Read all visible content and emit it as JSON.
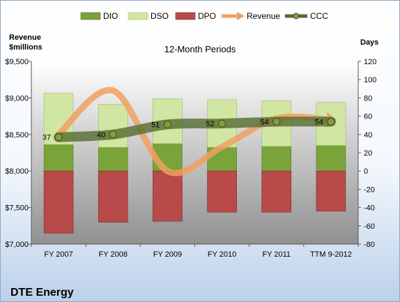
{
  "chart_data": {
    "type": "bar",
    "title": "12-Month Periods",
    "company": "DTE Energy",
    "y_left_label": [
      "Revenue",
      "$millions"
    ],
    "y_right_label": "Days",
    "categories": [
      "FY 2007",
      "FY 2008",
      "FY 2009",
      "FY 2010",
      "FY 2011",
      "TTM 9-2012"
    ],
    "y_left": {
      "min": 7000,
      "max": 9500,
      "step": 500,
      "tick_labels": [
        "$7,000",
        "$7,500",
        "$8,000",
        "$8,500",
        "$9,000",
        "$9,500"
      ]
    },
    "y_right": {
      "min": -80,
      "max": 120,
      "step": 20
    },
    "legend": {
      "position": "top",
      "items": [
        "DIO",
        "DSO",
        "DPO",
        "Revenue",
        "CCC"
      ]
    },
    "series": [
      {
        "name": "DIO",
        "type": "stacked-bar",
        "axis": "right",
        "color": "#7aa33a",
        "values": [
          29,
          26,
          30,
          26,
          27,
          28
        ]
      },
      {
        "name": "DSO",
        "type": "stacked-bar",
        "axis": "right",
        "color": "#d2e6a4",
        "values": [
          56,
          47,
          49,
          52,
          50,
          47
        ]
      },
      {
        "name": "DPO",
        "type": "stacked-bar",
        "axis": "right",
        "color": "#b84a4a",
        "values": [
          -68,
          -56,
          -55,
          -45,
          -45,
          -44
        ]
      },
      {
        "name": "Revenue",
        "type": "line",
        "axis": "left",
        "color": "#f0a060",
        "values": [
          8500,
          9100,
          8000,
          8330,
          8720,
          8700
        ]
      },
      {
        "name": "CCC",
        "type": "line",
        "axis": "right",
        "color": "#556b2f",
        "values": [
          37,
          40,
          51,
          52,
          54,
          54
        ]
      }
    ],
    "ccc_labels": [
      "37",
      "40",
      "51",
      "52",
      "54",
      "54"
    ],
    "colors": {
      "plot_bg_top": "#ffffff",
      "plot_bg_bottom": "#909090",
      "frame": "#8aa8c8"
    }
  }
}
